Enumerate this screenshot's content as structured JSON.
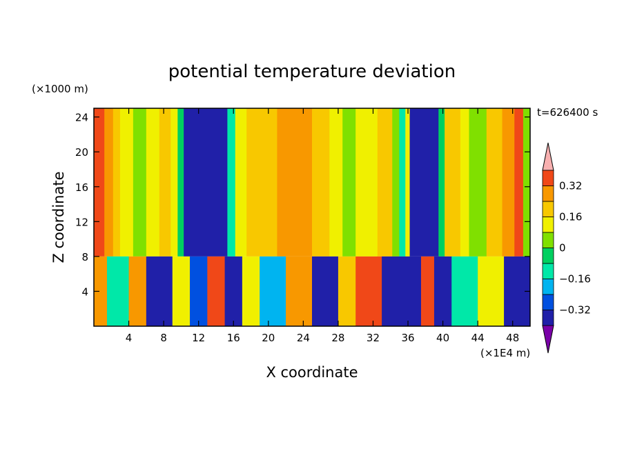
{
  "chart_data": {
    "type": "heatmap",
    "title": "potential temperature deviation",
    "xlabel": "X coordinate",
    "ylabel": "Z coordinate",
    "x_unit": "(×1E4 m)",
    "y_unit": "(×1000 m)",
    "time_label": "t=626400 s",
    "xlim": [
      0,
      50
    ],
    "ylim": [
      0,
      25
    ],
    "x_ticks": [
      4,
      8,
      12,
      16,
      20,
      24,
      28,
      32,
      36,
      40,
      44,
      48
    ],
    "y_ticks": [
      4,
      8,
      12,
      16,
      20,
      24
    ],
    "x_tick_labels": [
      "4",
      "8",
      "12",
      "16",
      "20",
      "24",
      "28",
      "32",
      "36",
      "40",
      "44",
      "48"
    ],
    "y_tick_labels": [
      "4",
      "8",
      "12",
      "16",
      "20",
      "24"
    ],
    "colorbar": {
      "levels": [
        -0.4,
        -0.32,
        -0.24,
        -0.16,
        -0.08,
        0,
        0.08,
        0.16,
        0.24,
        0.32,
        0.4
      ],
      "colors": [
        "#7a00a8",
        "#2020a8",
        "#0050e0",
        "#00b4f0",
        "#00e8a8",
        "#00d060",
        "#80e000",
        "#f0f000",
        "#f8c800",
        "#f89800",
        "#f04818",
        "#f8b0b0"
      ],
      "labels": [
        "0.32",
        "0.16",
        "0",
        "−0.16",
        "−0.32"
      ],
      "label_values": [
        0.32,
        0.16,
        0,
        -0.16,
        -0.32
      ]
    },
    "upper_layer": {
      "z_range": [
        8,
        25
      ],
      "columns": [
        {
          "x": [
            0,
            1.2
          ],
          "value": 0.36
        },
        {
          "x": [
            1.2,
            2.2
          ],
          "value": 0.3
        },
        {
          "x": [
            2.2,
            3.0
          ],
          "value": 0.22
        },
        {
          "x": [
            3.0,
            4.5
          ],
          "value": 0.12
        },
        {
          "x": [
            4.5,
            6.0
          ],
          "value": 0.02
        },
        {
          "x": [
            6.0,
            7.5
          ],
          "value": 0.12
        },
        {
          "x": [
            7.5,
            8.8
          ],
          "value": 0.22
        },
        {
          "x": [
            8.8,
            9.6
          ],
          "value": 0.14
        },
        {
          "x": [
            9.6,
            10.3
          ],
          "value": -0.06
        },
        {
          "x": [
            10.3,
            15.3
          ],
          "value": -0.38
        },
        {
          "x": [
            15.3,
            16.2
          ],
          "value": -0.14
        },
        {
          "x": [
            16.2,
            17.5
          ],
          "value": 0.12
        },
        {
          "x": [
            17.5,
            21.0
          ],
          "value": 0.2
        },
        {
          "x": [
            21.0,
            25.0
          ],
          "value": 0.28
        },
        {
          "x": [
            25.0,
            27.0
          ],
          "value": 0.18
        },
        {
          "x": [
            27.0,
            28.5
          ],
          "value": 0.12
        },
        {
          "x": [
            28.5,
            30.0
          ],
          "value": 0.04
        },
        {
          "x": [
            30.0,
            32.5
          ],
          "value": 0.12
        },
        {
          "x": [
            32.5,
            34.2
          ],
          "value": 0.2
        },
        {
          "x": [
            34.2,
            35.0
          ],
          "value": 0.06
        },
        {
          "x": [
            35.0,
            35.7
          ],
          "value": -0.14
        },
        {
          "x": [
            35.7,
            36.2
          ],
          "value": 0.1
        },
        {
          "x": [
            36.2,
            39.5
          ],
          "value": -0.38
        },
        {
          "x": [
            39.5,
            40.2
          ],
          "value": -0.06
        },
        {
          "x": [
            40.2,
            42.0
          ],
          "value": 0.22
        },
        {
          "x": [
            42.0,
            43.0
          ],
          "value": 0.12
        },
        {
          "x": [
            43.0,
            45.0
          ],
          "value": 0.04
        },
        {
          "x": [
            45.0,
            46.8
          ],
          "value": 0.22
        },
        {
          "x": [
            46.8,
            48.2
          ],
          "value": 0.3
        },
        {
          "x": [
            48.2,
            49.2
          ],
          "value": 0.36
        },
        {
          "x": [
            49.2,
            50.0
          ],
          "value": 0.06
        }
      ]
    },
    "lower_layer": {
      "z_range": [
        0,
        8
      ],
      "columns": [
        {
          "x": [
            0,
            1.5
          ],
          "value": 0.3
        },
        {
          "x": [
            1.5,
            4.0
          ],
          "value": -0.12
        },
        {
          "x": [
            4.0,
            6.0
          ],
          "value": 0.3
        },
        {
          "x": [
            6.0,
            9.0
          ],
          "value": -0.36
        },
        {
          "x": [
            9.0,
            11.0
          ],
          "value": 0.1
        },
        {
          "x": [
            11.0,
            13.0
          ],
          "value": -0.3
        },
        {
          "x": [
            13.0,
            15.0
          ],
          "value": 0.38
        },
        {
          "x": [
            15.0,
            17.0
          ],
          "value": -0.34
        },
        {
          "x": [
            17.0,
            19.0
          ],
          "value": 0.12
        },
        {
          "x": [
            19.0,
            22.0
          ],
          "value": -0.2
        },
        {
          "x": [
            22.0,
            25.0
          ],
          "value": 0.28
        },
        {
          "x": [
            25.0,
            28.0
          ],
          "value": -0.36
        },
        {
          "x": [
            28.0,
            30.0
          ],
          "value": 0.2
        },
        {
          "x": [
            30.0,
            33.0
          ],
          "value": 0.38
        },
        {
          "x": [
            33.0,
            37.5
          ],
          "value": -0.38
        },
        {
          "x": [
            37.5,
            39.0
          ],
          "value": 0.36
        },
        {
          "x": [
            39.0,
            41.0
          ],
          "value": -0.36
        },
        {
          "x": [
            41.0,
            44.0
          ],
          "value": -0.1
        },
        {
          "x": [
            44.0,
            47.0
          ],
          "value": 0.1
        },
        {
          "x": [
            47.0,
            50.0
          ],
          "value": -0.38
        }
      ]
    }
  }
}
